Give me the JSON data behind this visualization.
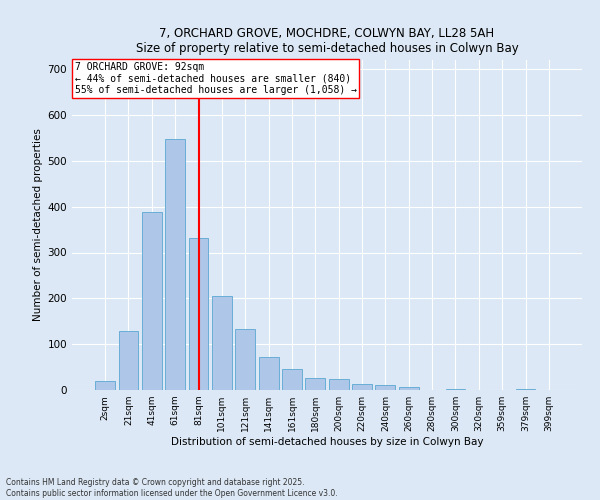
{
  "title_line1": "7, ORCHARD GROVE, MOCHDRE, COLWYN BAY, LL28 5AH",
  "title_line2": "Size of property relative to semi-detached houses in Colwyn Bay",
  "xlabel": "Distribution of semi-detached houses by size in Colwyn Bay",
  "ylabel": "Number of semi-detached properties",
  "categories": [
    "2sqm",
    "21sqm",
    "41sqm",
    "61sqm",
    "81sqm",
    "101sqm",
    "121sqm",
    "141sqm",
    "161sqm",
    "180sqm",
    "200sqm",
    "220sqm",
    "240sqm",
    "260sqm",
    "280sqm",
    "300sqm",
    "320sqm",
    "359sqm",
    "379sqm",
    "399sqm"
  ],
  "values": [
    20,
    128,
    388,
    548,
    332,
    205,
    133,
    72,
    46,
    27,
    25,
    13,
    10,
    6,
    0,
    3,
    0,
    0,
    3,
    0
  ],
  "bar_color": "#aec6e8",
  "bar_edge_color": "#6aaed6",
  "vline_x": 4,
  "annotation_title": "7 ORCHARD GROVE: 92sqm",
  "annotation_line2": "← 44% of semi-detached houses are smaller (840)",
  "annotation_line3": "55% of semi-detached houses are larger (1,058) →",
  "ylim": [
    0,
    720
  ],
  "yticks": [
    0,
    100,
    200,
    300,
    400,
    500,
    600,
    700
  ],
  "footer_line1": "Contains HM Land Registry data © Crown copyright and database right 2025.",
  "footer_line2": "Contains public sector information licensed under the Open Government Licence v3.0.",
  "bg_color": "#dce8f5",
  "plot_bg_color": "#dce8f5"
}
